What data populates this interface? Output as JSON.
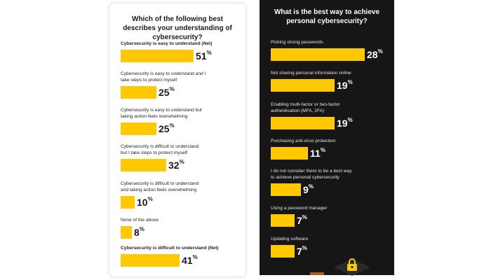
{
  "colors": {
    "bar": "#ffc800",
    "left_bg": "#ffffff",
    "right_bg": "#161616"
  },
  "chart_data": [
    {
      "type": "bar",
      "orientation": "horizontal",
      "title": "Which of the following best describes your understanding of cybersecurity?",
      "categories": [
        "Cybersecurity is easy to understand (Net)",
        "Cybersecurity is easy to understand and I take steps to protect myself",
        "Cybersecurity is easy to understand but taking action feels overwhelming",
        "Cybersecurity is difficult to understand but I take steps to protect myself",
        "Cybersecurity is difficult to understand and taking action feels overwhelming",
        "None of the above",
        "Cybersecurity is difficult to understand (Net)"
      ],
      "values": [
        51,
        25,
        25,
        32,
        10,
        8,
        41
      ],
      "value_suffix": "%",
      "labels_display": [
        "Cybersecurity is easy to understand (Net)",
        "Cybersecurity is easy to understand and I\ntake steps to protect myself",
        "Cybersecurity is easy to understand but\ntaking action feels overwhelming",
        "Cybersecurity is difficult to understand\nbut I take steps to protect myself",
        "Cybersecurity is difficult to understand\nand taking action feels overwhelming",
        "None of the above",
        "Cybersecurity is difficult to understand (Net)"
      ],
      "bold_labels": [
        true,
        false,
        false,
        false,
        false,
        false,
        true
      ]
    },
    {
      "type": "bar",
      "orientation": "horizontal",
      "title": "What is the best way to achieve personal cybersecurity?",
      "categories": [
        "Picking strong passwords",
        "Not sharing personal information online",
        "Enabling multi-factor or two-factor authentication (MFA, 2FA)",
        "Purchasing anti-virus protection",
        "I do not consider there to be a best way to achieve personal cybersecurity",
        "Using a password manager",
        "Updating software"
      ],
      "values": [
        28,
        19,
        19,
        11,
        9,
        7,
        7
      ],
      "value_suffix": "%",
      "labels_display": [
        "Picking strong passwords",
        "Not sharing personal information online",
        "Enabling multi-factor or two-factor\nauthentication (MFA, 2FA)",
        "Purchasing anti-virus protection",
        "I do not consider there to be a best way\nto achieve personal cybersecurity",
        "Using a password manager",
        "Updating software"
      ]
    }
  ],
  "decor": {
    "lock_icon": "padlock-icon"
  }
}
